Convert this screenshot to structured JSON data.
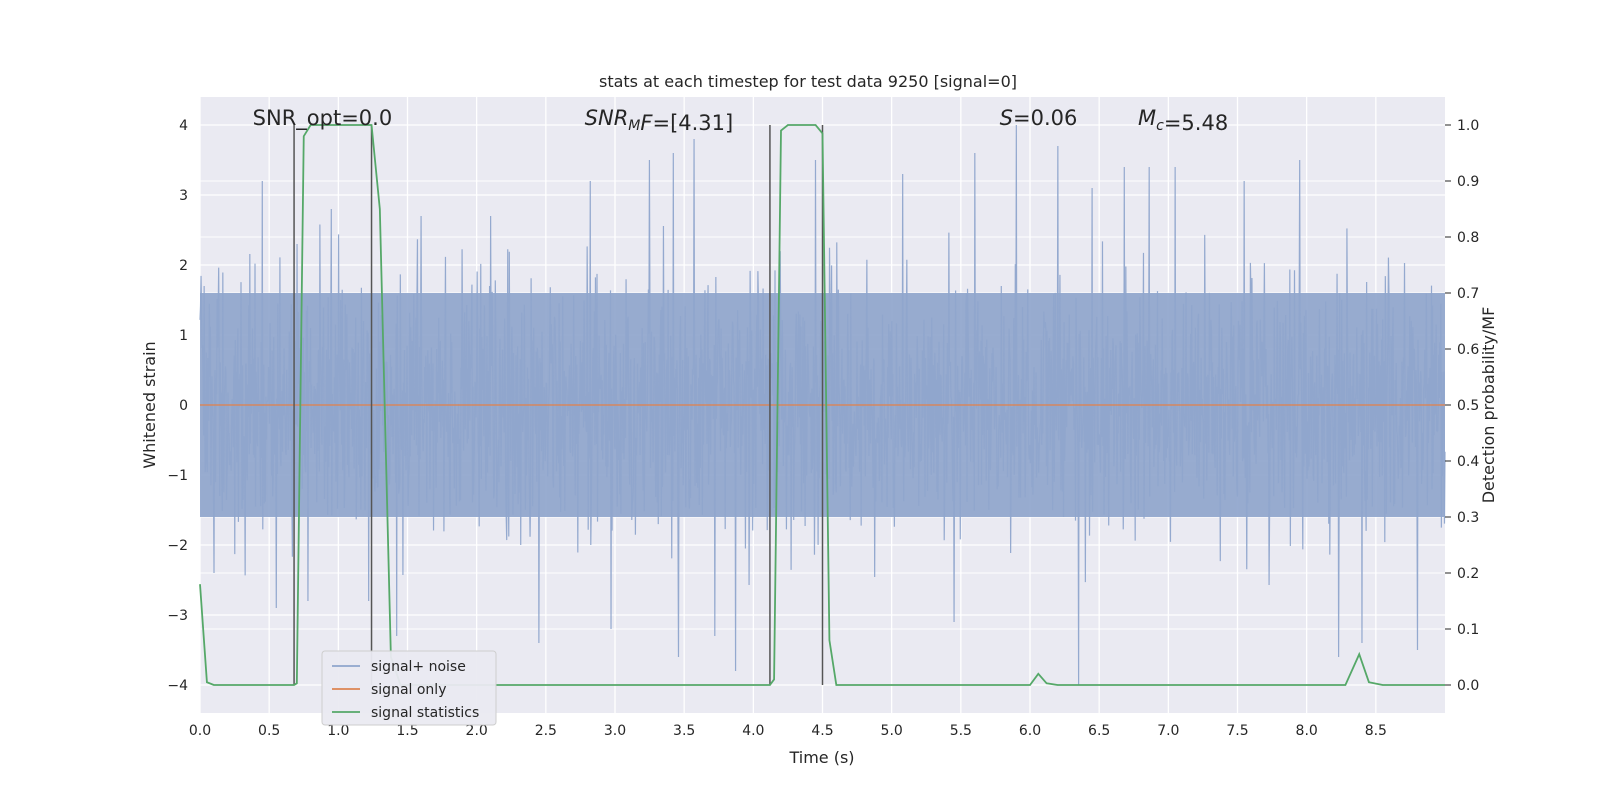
{
  "chart_data": {
    "type": "line",
    "title": "stats at each timestep for test data 9250 [signal=0]",
    "xlabel": "Time (s)",
    "ylabel": "Whitened strain",
    "y2label": "Detection probability/MF",
    "xlim": [
      0.0,
      9.0
    ],
    "ylim": [
      -4.4,
      4.4
    ],
    "y2lim": [
      -0.05,
      1.05
    ],
    "xticks": [
      0.0,
      0.5,
      1.0,
      1.5,
      2.0,
      2.5,
      3.0,
      3.5,
      4.0,
      4.5,
      5.0,
      5.5,
      6.0,
      6.5,
      7.0,
      7.5,
      8.0,
      8.5
    ],
    "xtick_labels": [
      "0.0",
      "0.5",
      "1.0",
      "1.5",
      "2.0",
      "2.5",
      "3.0",
      "3.5",
      "4.0",
      "4.5",
      "5.0",
      "5.5",
      "6.0",
      "6.5",
      "7.0",
      "7.5",
      "8.0",
      "8.5"
    ],
    "yticks": [
      -4,
      -3,
      -2,
      -1,
      0,
      1,
      2,
      3,
      4
    ],
    "ytick_labels": [
      "−4",
      "−3",
      "−2",
      "−1",
      "0",
      "1",
      "2",
      "3",
      "4"
    ],
    "y2ticks": [
      0.0,
      0.1,
      0.2,
      0.3,
      0.4,
      0.5,
      0.6,
      0.7,
      0.8,
      0.9,
      1.0
    ],
    "y2tick_labels": [
      "0.0",
      "0.1",
      "0.2",
      "0.3",
      "0.4",
      "0.5",
      "0.6",
      "0.7",
      "0.8",
      "0.9",
      "1.0"
    ],
    "grid": true,
    "legend_placement": "lower-left",
    "annotations": [
      {
        "parts": [
          {
            "t": "SNR_opt=0.0",
            "i": false
          }
        ],
        "x": 0.2,
        "y": 4.0
      },
      {
        "parts": [
          {
            "t": "SNR",
            "i": true
          },
          {
            "t": "M",
            "i": true,
            "sub": true
          },
          {
            "t": "F",
            "i": true
          },
          {
            "t": "=[4.31]",
            "i": false
          }
        ],
        "x": 2.6,
        "y": 4.0
      },
      {
        "parts": [
          {
            "t": "S",
            "i": true
          },
          {
            "t": "=0.06",
            "i": false
          }
        ],
        "x": 5.6,
        "y": 4.0
      },
      {
        "parts": [
          {
            "t": "M",
            "i": true
          },
          {
            "t": "c",
            "i": true,
            "sub": true
          },
          {
            "t": "=5.48",
            "i": false
          }
        ],
        "x": 6.6,
        "y": 4.0
      }
    ],
    "series": [
      {
        "name": "signal+ noise",
        "color": "#8fa5cc",
        "kind": "noise",
        "amplitude_envelope": [
          1.6,
          -1.6
        ],
        "peaks": [
          {
            "x": 0.03,
            "y": 1.7
          },
          {
            "x": 0.1,
            "y": -2.4
          },
          {
            "x": 0.45,
            "y": 3.2
          },
          {
            "x": 0.55,
            "y": -2.9
          },
          {
            "x": 0.7,
            "y": 2.3
          },
          {
            "x": 0.78,
            "y": -2.8
          },
          {
            "x": 0.95,
            "y": 2.8
          },
          {
            "x": 1.22,
            "y": -2.8
          },
          {
            "x": 1.42,
            "y": -3.3
          },
          {
            "x": 1.6,
            "y": 2.7
          },
          {
            "x": 2.1,
            "y": 2.7
          },
          {
            "x": 2.45,
            "y": -3.4
          },
          {
            "x": 2.82,
            "y": 3.2
          },
          {
            "x": 2.97,
            "y": -3.2
          },
          {
            "x": 3.25,
            "y": 3.5
          },
          {
            "x": 3.42,
            "y": 3.6
          },
          {
            "x": 3.46,
            "y": -3.6
          },
          {
            "x": 3.57,
            "y": 3.8
          },
          {
            "x": 3.72,
            "y": -3.3
          },
          {
            "x": 3.87,
            "y": -3.8
          },
          {
            "x": 4.45,
            "y": 3.5
          },
          {
            "x": 5.08,
            "y": 3.3
          },
          {
            "x": 5.45,
            "y": -3.1
          },
          {
            "x": 5.6,
            "y": 3.6
          },
          {
            "x": 5.9,
            "y": 4.0
          },
          {
            "x": 6.2,
            "y": 3.7
          },
          {
            "x": 6.35,
            "y": -4.0
          },
          {
            "x": 6.45,
            "y": 3.1
          },
          {
            "x": 6.68,
            "y": 3.4
          },
          {
            "x": 6.86,
            "y": 3.4
          },
          {
            "x": 7.05,
            "y": 3.4
          },
          {
            "x": 7.55,
            "y": 3.2
          },
          {
            "x": 7.95,
            "y": 3.5
          },
          {
            "x": 8.23,
            "y": -3.6
          },
          {
            "x": 8.4,
            "y": -3.4
          },
          {
            "x": 8.8,
            "y": -3.5
          }
        ]
      },
      {
        "name": "signal only",
        "color": "#dd8452",
        "x": [
          0.0,
          9.0
        ],
        "y": [
          0.0,
          0.0
        ]
      },
      {
        "name": "signal statistics",
        "color": "#55a868",
        "axis": "right",
        "x": [
          0.0,
          0.05,
          0.1,
          0.3,
          0.5,
          0.68,
          0.7,
          0.75,
          0.8,
          1.0,
          1.2,
          1.24,
          1.3,
          1.38,
          1.45,
          3.8,
          4.05,
          4.12,
          4.15,
          4.2,
          4.25,
          4.3,
          4.45,
          4.5,
          4.55,
          4.6,
          5.0,
          5.5,
          6.0,
          6.06,
          6.12,
          6.2,
          7.0,
          7.5,
          8.0,
          8.28,
          8.38,
          8.45,
          8.55,
          9.0
        ],
        "y": [
          0.18,
          0.005,
          0.0,
          0.0,
          0.0,
          0.0,
          0.003,
          0.98,
          1.0,
          1.0,
          1.0,
          1.0,
          0.85,
          0.05,
          0.0,
          0.0,
          0.0,
          0.0,
          0.01,
          0.99,
          1.0,
          1.0,
          1.0,
          0.985,
          0.08,
          0.0,
          0.0,
          0.0,
          0.0,
          0.02,
          0.003,
          0.0,
          0.0,
          0.0,
          0.0,
          0.0,
          0.055,
          0.005,
          0.0,
          0.0
        ]
      }
    ],
    "vertical_lines": [
      {
        "x": 0.68,
        "color": "#555555"
      },
      {
        "x": 1.24,
        "color": "#555555"
      },
      {
        "x": 4.12,
        "color": "#555555"
      },
      {
        "x": 4.5,
        "color": "#555555"
      }
    ]
  }
}
